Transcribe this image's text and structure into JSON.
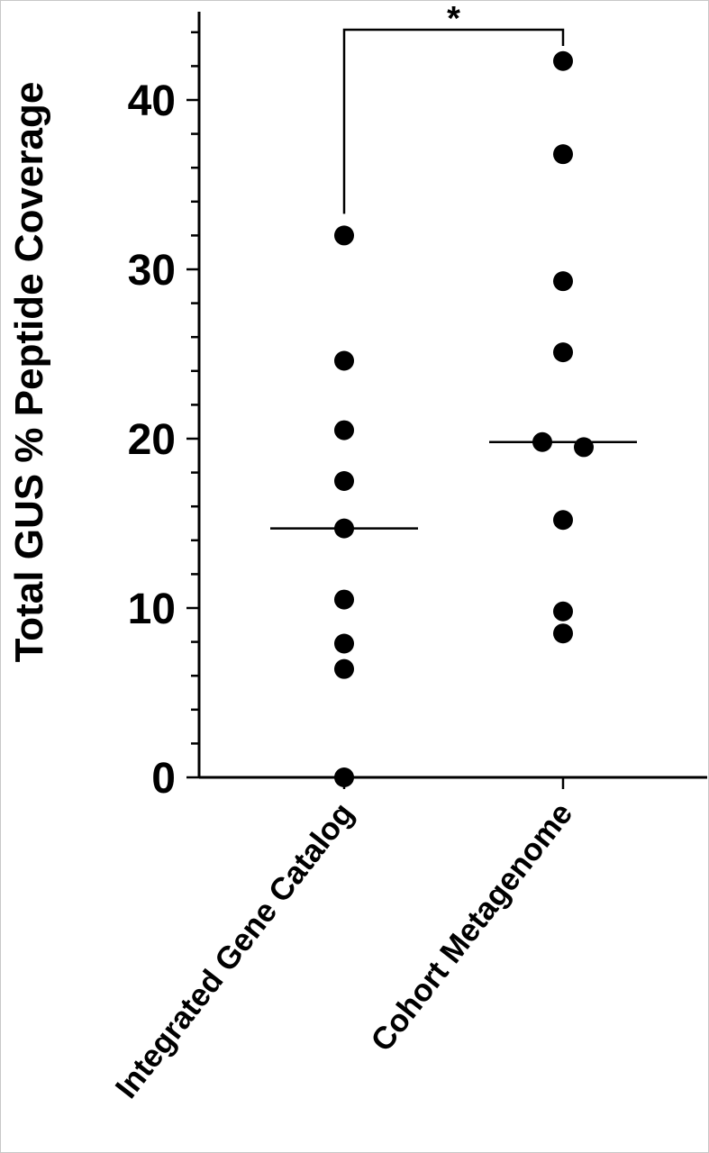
{
  "chart_data": {
    "type": "scatter",
    "ylabel": "Total GUS % Peptide Coverage",
    "ylim": [
      0,
      45
    ],
    "yticks": [
      0,
      10,
      20,
      30,
      40
    ],
    "categories": [
      "Integrated Gene Catalog",
      "Cohort Metagenome"
    ],
    "series": [
      {
        "category": "Integrated Gene Catalog",
        "values": [
          32.0,
          24.6,
          20.5,
          17.5,
          14.7,
          10.5,
          7.9,
          6.4,
          0.0
        ],
        "median": 14.7
      },
      {
        "category": "Cohort Metagenome",
        "values": [
          42.3,
          36.8,
          29.3,
          25.1,
          19.8,
          19.5,
          15.2,
          9.8,
          8.5
        ],
        "median": 19.8
      }
    ],
    "significance": {
      "label": "*",
      "between": [
        "Integrated Gene Catalog",
        "Cohort Metagenome"
      ]
    },
    "grid": false,
    "legend": "none",
    "colors": {
      "points": "#000000",
      "axes": "#000000",
      "background": "#ffffff"
    }
  }
}
